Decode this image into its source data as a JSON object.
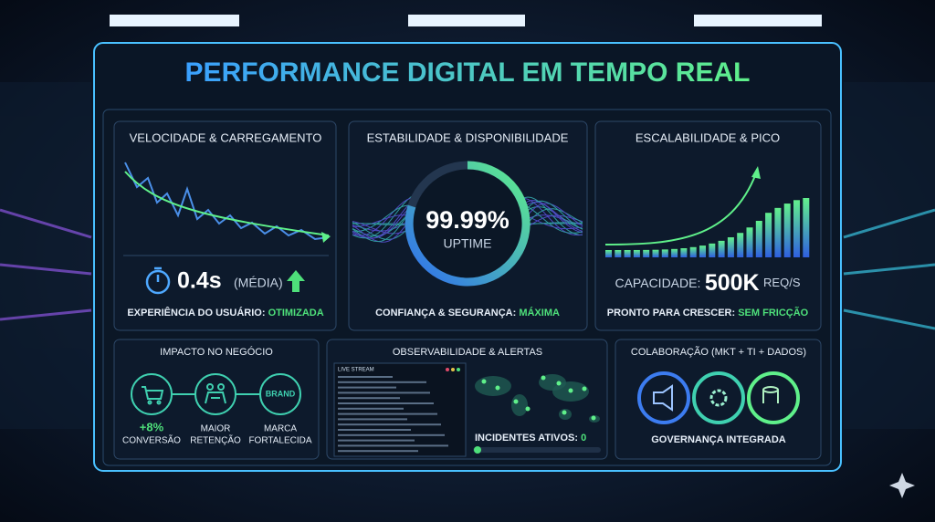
{
  "header": {
    "title": "PERFORMANCE DIGITAL EM TEMPO REAL"
  },
  "panels": {
    "speed": {
      "title": "VELOCIDADE & CARREGAMENTO",
      "metric": "0.4s",
      "metric_note": "(MÉDIA)",
      "footer_label": "EXPERIÊNCIA DO USUÁRIO:",
      "footer_value": "OTIMIZADA"
    },
    "stability": {
      "title": "ESTABILIDADE & DISPONIBILIDADE",
      "metric": "99.99%",
      "metric_note": "UPTIME",
      "footer_label": "CONFIANÇA & SEGURANÇA:",
      "footer_value": "MÁXIMA"
    },
    "scale": {
      "title": "ESCALABILIDADE & PICO",
      "metric_label": "CAPACIDADE:",
      "metric": "500K",
      "metric_unit": "REQ/S",
      "footer_label": "PRONTO PARA CRESCER:",
      "footer_value": "SEM FRICÇÃO"
    },
    "impact": {
      "title": "IMPACTO NO NEGÓCIO",
      "brand_icon": "BRAND",
      "items": [
        [
          "+8%",
          "CONVERSÃO"
        ],
        [
          "MAIOR",
          "RETENÇÃO"
        ],
        [
          "MARCA",
          "FORTALECIDA"
        ]
      ]
    },
    "observability": {
      "title": "OBSERVABILIDADE & ALERTAS",
      "stream_title": "LIVE STREAM",
      "incidents_label": "INCIDENTES ATIVOS:",
      "incidents_value": "0"
    },
    "collab": {
      "title": "COLABORAÇÃO (MKT + TI + DADOS)",
      "footer": "GOVERNANÇA INTEGRADA"
    }
  }
}
